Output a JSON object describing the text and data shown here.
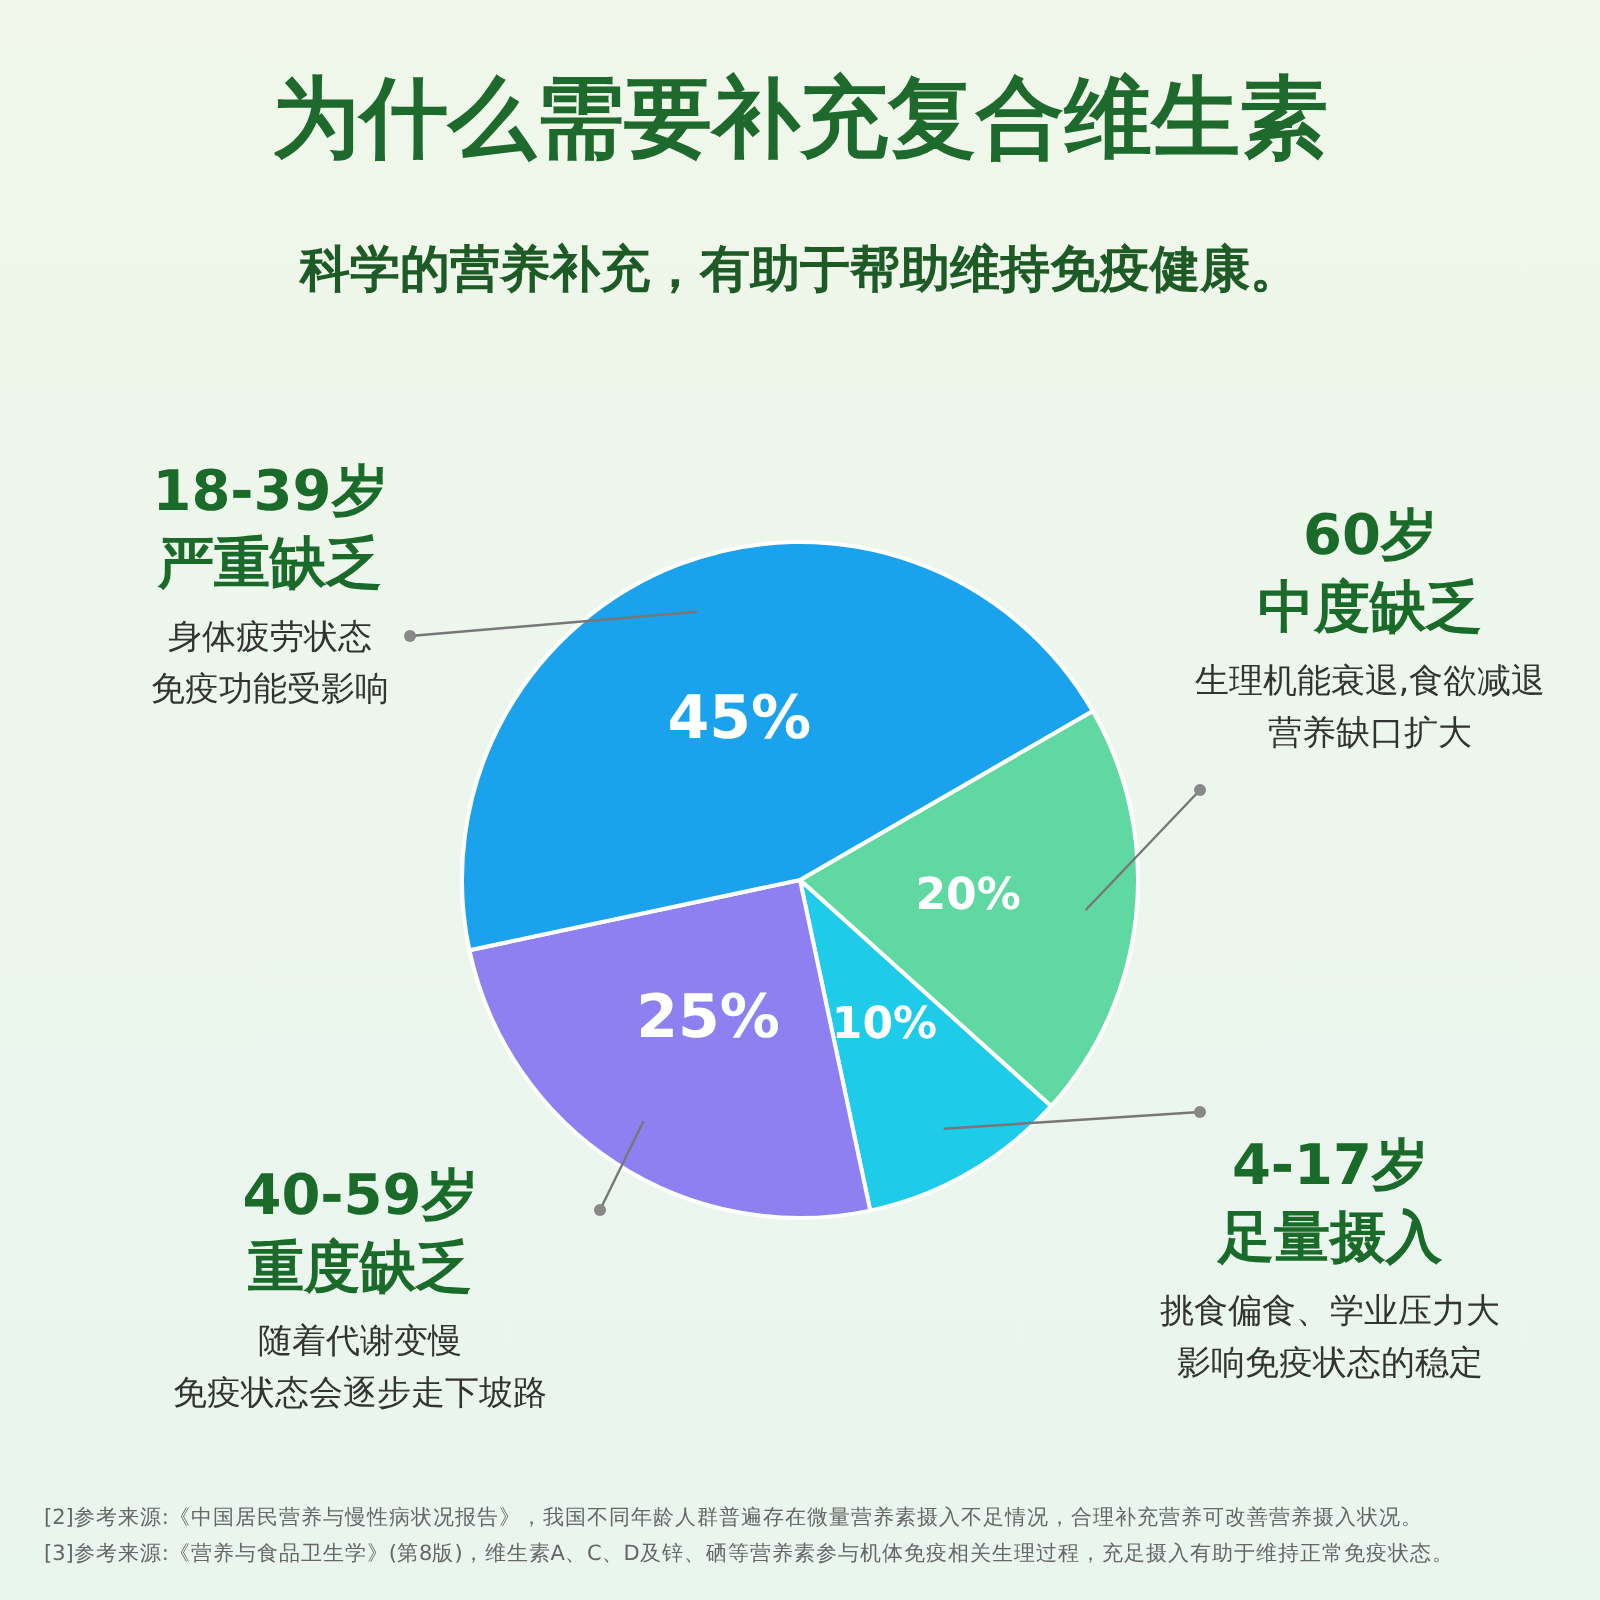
{
  "chart_data": {
    "type": "pie",
    "title": "为什么需要补充复合维生素",
    "subtitle": "科学的营养补充，有助于帮助维持免疫健康。",
    "categories": [
      "60岁",
      "4-17岁",
      "40-59岁",
      "18-39岁"
    ],
    "values": [
      20,
      10,
      25,
      45
    ],
    "value_labels": [
      "20%",
      "10%",
      "25%",
      "45%"
    ],
    "colors": [
      "#5fd8a2",
      "#1ecbe8",
      "#8e80f0",
      "#1aa2ec"
    ],
    "annotations": [
      "中度缺乏",
      "生理机能衰退,食欲减退",
      "营养缺口扩大",
      "足量摄入",
      "挑食偏食、学业压力大",
      "影响免疫状态的稳定",
      "重度缺乏",
      "随着代谢变慢",
      "免疫状态会逐步走下坡路",
      "严重缺乏",
      "身体疲劳状态",
      "免疫功能受影响",
      "[2]参考来源:《中国居民营养与慢性病状况报告》，我国不同年龄人群普遍存在微量营养素摄入不足情况，合理补充营养可改善营养摄入状况。",
      "[3]参考来源:《营养与食品卫生学》(第8版)，维生素A、C、D及锌、硒等营养素参与机体免疫相关生理过程，充足摄入有助于维持正常免疫状态。"
    ]
  }
}
